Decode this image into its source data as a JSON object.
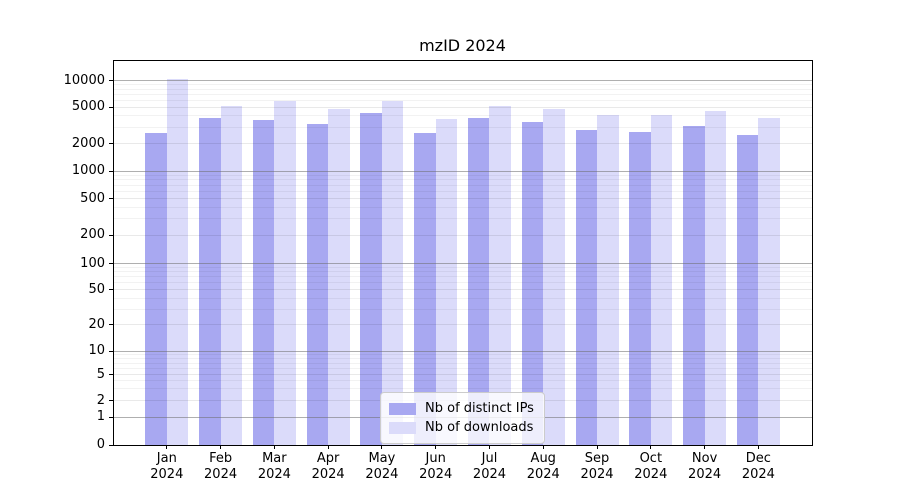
{
  "title": "mzID 2024",
  "chart_data": {
    "type": "bar",
    "title": "mzID 2024",
    "categories": [
      "Jan 2024",
      "Feb 2024",
      "Mar 2024",
      "Apr 2024",
      "May 2024",
      "Jun 2024",
      "Jul 2024",
      "Aug 2024",
      "Sep 2024",
      "Oct 2024",
      "Nov 2024",
      "Dec 2024"
    ],
    "x_tick_line1": [
      "Jan",
      "Feb",
      "Mar",
      "Apr",
      "May",
      "Jun",
      "Jul",
      "Aug",
      "Sep",
      "Oct",
      "Nov",
      "Dec"
    ],
    "x_tick_line2": "2024",
    "series": [
      {
        "name": "Nb of distinct IPs",
        "color": "#a8a8f1",
        "values": [
          2600,
          3800,
          3600,
          3300,
          4300,
          2600,
          3800,
          3400,
          2800,
          2700,
          3100,
          2500
        ]
      },
      {
        "name": "Nb of downloads",
        "color": "#dbdbfa",
        "values": [
          10400,
          5200,
          5800,
          4800,
          5900,
          3700,
          5200,
          4700,
          4100,
          4100,
          4500,
          3800
        ]
      }
    ],
    "y_axis": {
      "scale": "symlog",
      "ticks": [
        0,
        1,
        2,
        5,
        10,
        20,
        50,
        100,
        200,
        500,
        1000,
        2000,
        5000,
        10000
      ],
      "range_max": 10000
    },
    "xlabel": "",
    "ylabel": "",
    "grid": true,
    "legend_position": "lower center"
  }
}
